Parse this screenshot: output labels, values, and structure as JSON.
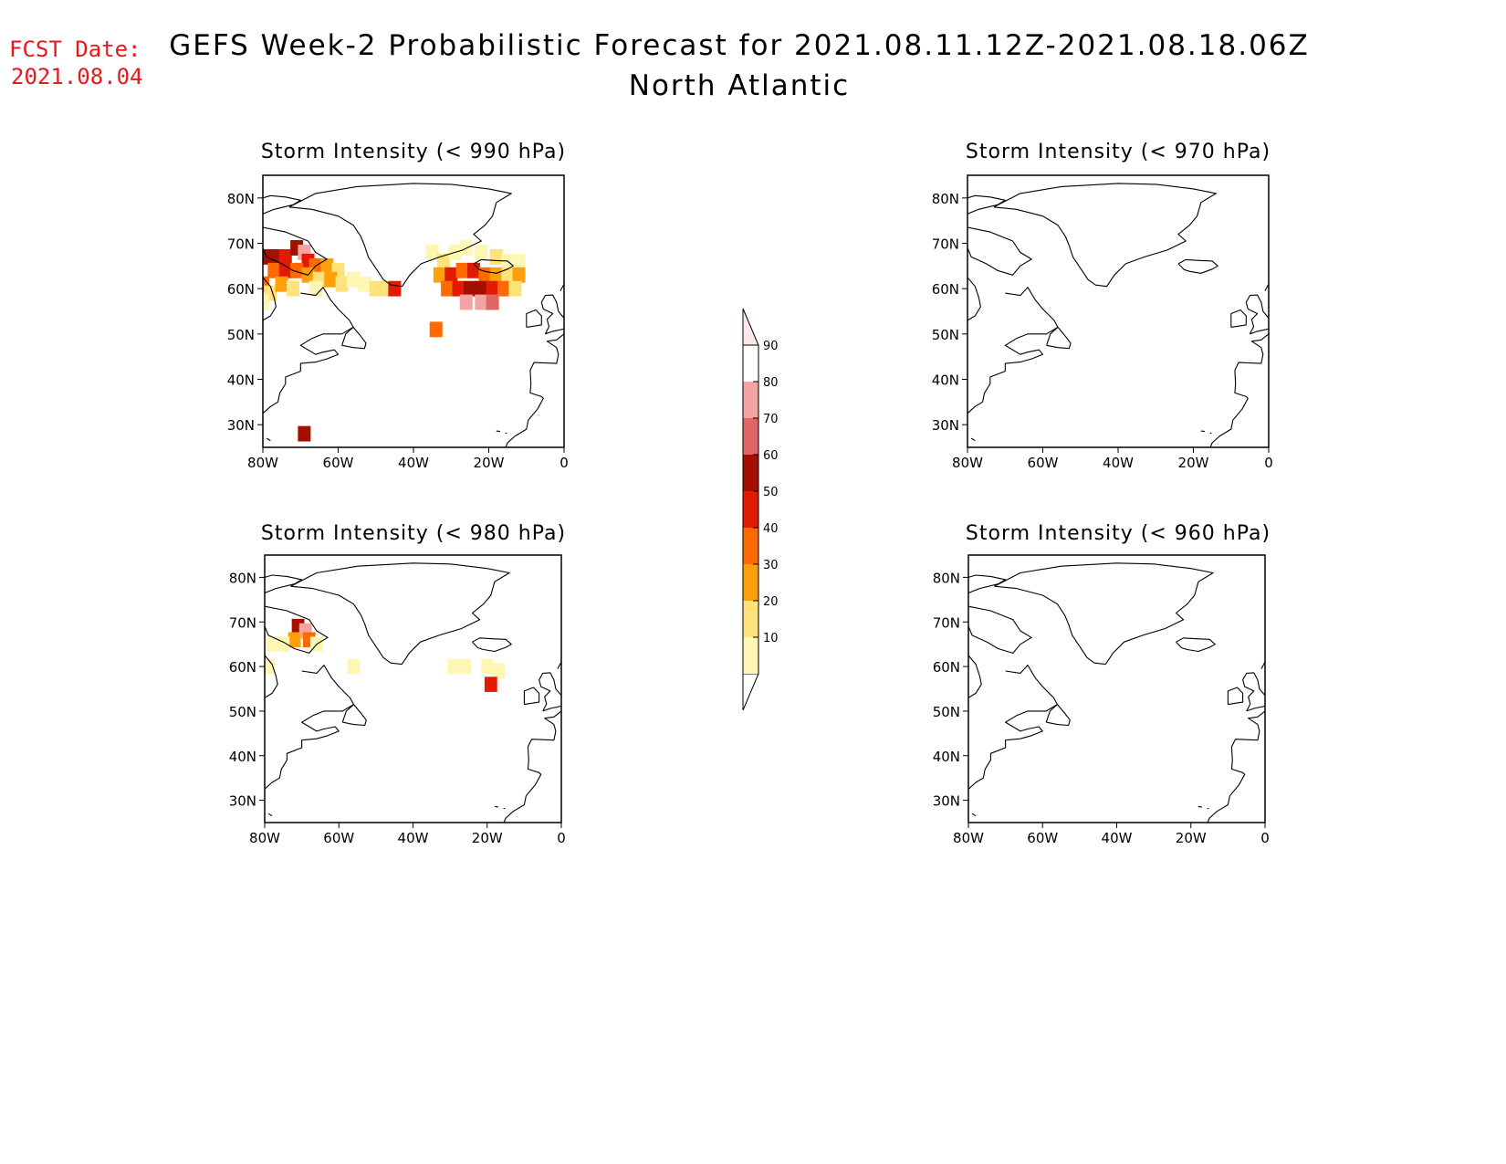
{
  "header": {
    "fcst_label": "FCST Date:",
    "fcst_date": "2021.08.04",
    "title": "GEFS Week-2 Probabilistic Forecast for 2021.08.11.12Z-2021.08.18.06Z",
    "subtitle": "North Atlantic"
  },
  "map": {
    "lon_range": [
      -80,
      0
    ],
    "lat_range": [
      25,
      85
    ],
    "lon_ticks": [
      "80W",
      "60W",
      "40W",
      "20W",
      "0"
    ],
    "lon_tick_values": [
      -80,
      -60,
      -40,
      -20,
      0
    ],
    "lat_ticks": [
      "80N",
      "70N",
      "60N",
      "50N",
      "40N",
      "30N"
    ],
    "lat_tick_values": [
      80,
      70,
      60,
      50,
      40,
      30
    ]
  },
  "panels": [
    {
      "title": "Storm Intensity (< 990 hPa)",
      "cells": [
        {
          "lon": -80,
          "lat": 67,
          "p": 65
        },
        {
          "lon": -77,
          "lat": 67,
          "p": 65
        },
        {
          "lon": -74,
          "lat": 67,
          "p": 55
        },
        {
          "lon": -71,
          "lat": 69,
          "p": 65
        },
        {
          "lon": -69,
          "lat": 68,
          "p": 85
        },
        {
          "lon": -68,
          "lat": 66,
          "p": 55
        },
        {
          "lon": -66,
          "lat": 65,
          "p": 45
        },
        {
          "lon": -63,
          "lat": 65,
          "p": 35
        },
        {
          "lon": -60,
          "lat": 64,
          "p": 25
        },
        {
          "lon": -77,
          "lat": 64,
          "p": 45
        },
        {
          "lon": -74,
          "lat": 64,
          "p": 55
        },
        {
          "lon": -71,
          "lat": 64,
          "p": 45
        },
        {
          "lon": -68,
          "lat": 63,
          "p": 35
        },
        {
          "lon": -65,
          "lat": 62,
          "p": 25
        },
        {
          "lon": -62,
          "lat": 62,
          "p": 35
        },
        {
          "lon": -59,
          "lat": 61,
          "p": 25
        },
        {
          "lon": -56,
          "lat": 62,
          "p": 15
        },
        {
          "lon": -53,
          "lat": 61,
          "p": 15
        },
        {
          "lon": -50,
          "lat": 60,
          "p": 25
        },
        {
          "lon": -47,
          "lat": 60,
          "p": 25
        },
        {
          "lon": -45,
          "lat": 60,
          "p": 55
        },
        {
          "lon": -80,
          "lat": 61,
          "p": 45
        },
        {
          "lon": -78,
          "lat": 59,
          "p": 25
        },
        {
          "lon": -80,
          "lat": 57,
          "p": 15
        },
        {
          "lon": -75,
          "lat": 61,
          "p": 35
        },
        {
          "lon": -72,
          "lat": 60,
          "p": 25
        },
        {
          "lon": -66,
          "lat": 60,
          "p": 15
        },
        {
          "lon": -34,
          "lat": 51,
          "p": 45
        },
        {
          "lon": -35,
          "lat": 68,
          "p": 15
        },
        {
          "lon": -32,
          "lat": 66,
          "p": 25
        },
        {
          "lon": -29,
          "lat": 68,
          "p": 15
        },
        {
          "lon": -26,
          "lat": 69,
          "p": 15
        },
        {
          "lon": -22,
          "lat": 68,
          "p": 15
        },
        {
          "lon": -18,
          "lat": 67,
          "p": 25
        },
        {
          "lon": -15,
          "lat": 66,
          "p": 15
        },
        {
          "lon": -12,
          "lat": 66,
          "p": 15
        },
        {
          "lon": -33,
          "lat": 63,
          "p": 35
        },
        {
          "lon": -30,
          "lat": 63,
          "p": 55
        },
        {
          "lon": -27,
          "lat": 64,
          "p": 45
        },
        {
          "lon": -24,
          "lat": 64,
          "p": 55
        },
        {
          "lon": -21,
          "lat": 63,
          "p": 45
        },
        {
          "lon": -18,
          "lat": 63,
          "p": 35
        },
        {
          "lon": -15,
          "lat": 63,
          "p": 25
        },
        {
          "lon": -12,
          "lat": 63,
          "p": 35
        },
        {
          "lon": -31,
          "lat": 60,
          "p": 45
        },
        {
          "lon": -28,
          "lat": 60,
          "p": 55
        },
        {
          "lon": -25,
          "lat": 60,
          "p": 65
        },
        {
          "lon": -22,
          "lat": 60,
          "p": 65
        },
        {
          "lon": -19,
          "lat": 60,
          "p": 55
        },
        {
          "lon": -16,
          "lat": 60,
          "p": 45
        },
        {
          "lon": -13,
          "lat": 60,
          "p": 25
        },
        {
          "lon": -26,
          "lat": 57,
          "p": 85
        },
        {
          "lon": -22,
          "lat": 57,
          "p": 85
        },
        {
          "lon": -19,
          "lat": 57,
          "p": 75
        },
        {
          "lon": -69,
          "lat": 28,
          "p": 65
        }
      ]
    },
    {
      "title": "Storm Intensity (< 970 hPa)",
      "cells": []
    },
    {
      "title": "Storm Intensity (< 980 hPa)",
      "cells": [
        {
          "lon": -71,
          "lat": 69,
          "p": 65
        },
        {
          "lon": -69,
          "lat": 68,
          "p": 85
        },
        {
          "lon": -68,
          "lat": 66,
          "p": 45
        },
        {
          "lon": -72,
          "lat": 66,
          "p": 35
        },
        {
          "lon": -75,
          "lat": 65,
          "p": 15
        },
        {
          "lon": -66,
          "lat": 65,
          "p": 15
        },
        {
          "lon": -78,
          "lat": 65,
          "p": 15
        },
        {
          "lon": -79,
          "lat": 60,
          "p": 15
        },
        {
          "lon": -56,
          "lat": 60,
          "p": 15
        },
        {
          "lon": -29,
          "lat": 60,
          "p": 15
        },
        {
          "lon": -26,
          "lat": 60,
          "p": 15
        },
        {
          "lon": -20,
          "lat": 60,
          "p": 15
        },
        {
          "lon": -17,
          "lat": 59,
          "p": 15
        },
        {
          "lon": -19,
          "lat": 56,
          "p": 55
        }
      ]
    },
    {
      "title": "Storm Intensity (< 960 hPa)",
      "cells": []
    }
  ],
  "colorbar": {
    "labels": [
      "90",
      "80",
      "70",
      "60",
      "50",
      "40",
      "30",
      "20",
      "10"
    ],
    "levels": [
      10,
      20,
      30,
      40,
      50,
      60,
      70,
      80,
      90
    ],
    "colors": [
      "#fff6b3",
      "#ffe27a",
      "#ffa00a",
      "#ff6a00",
      "#e21b00",
      "#a50f00",
      "#e06565",
      "#f4a3a3",
      "#ffe6e8"
    ]
  }
}
